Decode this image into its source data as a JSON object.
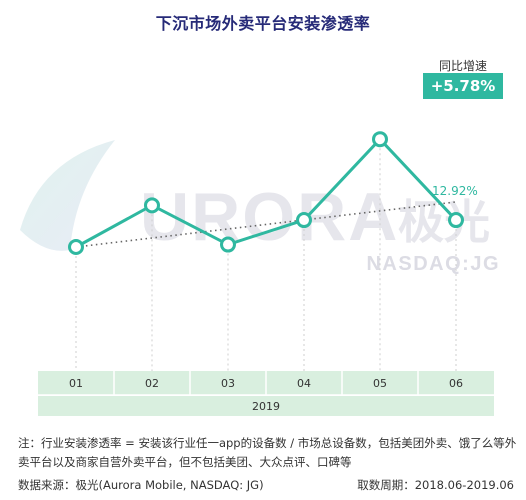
{
  "title": "下沉市场外卖平台安装渗透率",
  "growth": {
    "label": "同比增速",
    "value": "+5.78%"
  },
  "watermark": {
    "brand": "URORA",
    "brand_cn": "极光",
    "ticker": "NASDAQ:JG"
  },
  "note": "注：行业安装渗透率 = 安装该行业任一app的设备数 / 市场总设备数，包括美团外卖、饿了么等外卖平台以及商家自营外卖平台，但不包括美团、大众点评、口碑等",
  "source": "数据来源：极光(Aurora Mobile, NASDAQ: JG)",
  "period": "取数周期：2018.06-2019.06",
  "colors": {
    "line": "#2fb8a0",
    "title": "#262a78",
    "axis_bg": "#d9efdf",
    "trend": "#666666",
    "badge": "#2fb8a0"
  },
  "chart_data": {
    "type": "line",
    "title": "下沉市场外卖平台安装渗透率",
    "categories": [
      "01",
      "02",
      "03",
      "04",
      "05",
      "06"
    ],
    "x_group_label": "2019",
    "values": [
      12.0,
      12.85,
      12.05,
      12.55,
      14.2,
      12.55
    ],
    "end_label": "12.92%",
    "trendline": {
      "start": 12.0,
      "end": 12.92,
      "style": "dotted"
    },
    "ylim": [
      10.0,
      15.0
    ],
    "y_axis_visible": false,
    "grid": false,
    "legend": "none"
  }
}
